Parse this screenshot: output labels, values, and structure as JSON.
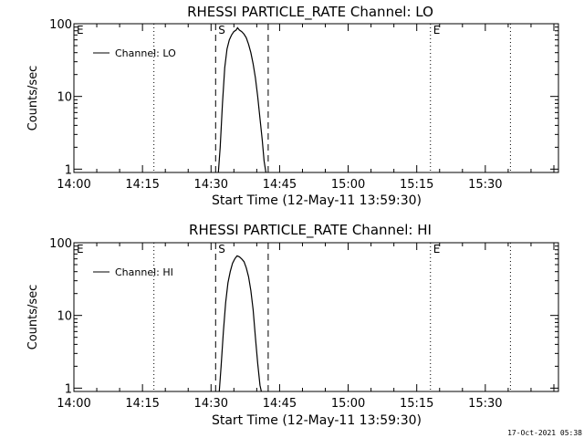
{
  "footer_timestamp": "17-Oct-2021 05:38",
  "colors": {
    "background": "#ffffff",
    "ink": "#000000"
  },
  "chart_data": [
    {
      "type": "line",
      "title": "RHESSI PARTICLE_RATE Channel: LO",
      "xlabel": "Start Time (12-May-11 13:59:30)",
      "ylabel": "Counts/sec",
      "y_scale": "log",
      "ylim": [
        0.9,
        100
      ],
      "xlim_minutes": [
        0,
        106
      ],
      "x_ticks": [
        {
          "label": "14:00",
          "value": 0
        },
        {
          "label": "14:15",
          "value": 15
        },
        {
          "label": "14:30",
          "value": 30
        },
        {
          "label": "14:45",
          "value": 45
        },
        {
          "label": "15:00",
          "value": 60
        },
        {
          "label": "15:15",
          "value": 75
        },
        {
          "label": "15:30",
          "value": 90
        }
      ],
      "y_ticks": [
        {
          "label": "1",
          "value": 1
        },
        {
          "label": "10",
          "value": 10
        },
        {
          "label": "100",
          "value": 100
        }
      ],
      "legend": {
        "label": "Channel: LO",
        "placement": "top-left"
      },
      "markers": [
        {
          "label": "E",
          "minutes": 0,
          "style": "dotted"
        },
        {
          "label": "",
          "minutes": 17.5,
          "style": "dotted"
        },
        {
          "label": "S",
          "minutes": 31,
          "style": "dashed"
        },
        {
          "label": "",
          "minutes": 42.5,
          "style": "dashed"
        },
        {
          "label": "E",
          "minutes": 78,
          "style": "dotted"
        },
        {
          "label": "",
          "minutes": 95.5,
          "style": "dotted"
        }
      ],
      "series": [
        {
          "name": "Channel: LO",
          "points": [
            [
              31.6,
              0.9
            ],
            [
              32.0,
              2.0
            ],
            [
              32.5,
              8
            ],
            [
              33.0,
              25
            ],
            [
              33.5,
              45
            ],
            [
              34.0,
              60
            ],
            [
              34.5,
              70
            ],
            [
              35.0,
              78
            ],
            [
              35.5,
              82
            ],
            [
              35.8,
              88
            ],
            [
              36.2,
              82
            ],
            [
              36.7,
              78
            ],
            [
              37.2,
              72
            ],
            [
              37.7,
              64
            ],
            [
              38.2,
              52
            ],
            [
              38.7,
              40
            ],
            [
              39.2,
              28
            ],
            [
              39.7,
              18
            ],
            [
              40.2,
              10
            ],
            [
              40.7,
              5
            ],
            [
              41.2,
              2.5
            ],
            [
              41.6,
              1.3
            ],
            [
              42.0,
              0.9
            ]
          ]
        }
      ]
    },
    {
      "type": "line",
      "title": "RHESSI PARTICLE_RATE Channel: HI",
      "xlabel": "Start Time (12-May-11 13:59:30)",
      "ylabel": "Counts/sec",
      "y_scale": "log",
      "ylim": [
        0.9,
        100
      ],
      "xlim_minutes": [
        0,
        106
      ],
      "x_ticks": [
        {
          "label": "14:00",
          "value": 0
        },
        {
          "label": "14:15",
          "value": 15
        },
        {
          "label": "14:30",
          "value": 30
        },
        {
          "label": "14:45",
          "value": 45
        },
        {
          "label": "15:00",
          "value": 60
        },
        {
          "label": "15:15",
          "value": 75
        },
        {
          "label": "15:30",
          "value": 90
        }
      ],
      "y_ticks": [
        {
          "label": "1",
          "value": 1
        },
        {
          "label": "10",
          "value": 10
        },
        {
          "label": "100",
          "value": 100
        }
      ],
      "legend": {
        "label": "Channel: HI",
        "placement": "top-left"
      },
      "markers": [
        {
          "label": "E",
          "minutes": 0,
          "style": "dotted"
        },
        {
          "label": "",
          "minutes": 17.5,
          "style": "dotted"
        },
        {
          "label": "S",
          "minutes": 31,
          "style": "dashed"
        },
        {
          "label": "",
          "minutes": 42.5,
          "style": "dashed"
        },
        {
          "label": "E",
          "minutes": 78,
          "style": "dotted"
        },
        {
          "label": "",
          "minutes": 95.5,
          "style": "dotted"
        }
      ],
      "series": [
        {
          "name": "Channel: HI",
          "points": [
            [
              31.8,
              0.9
            ],
            [
              32.2,
              2.0
            ],
            [
              32.7,
              6
            ],
            [
              33.2,
              15
            ],
            [
              33.7,
              28
            ],
            [
              34.2,
              40
            ],
            [
              34.7,
              52
            ],
            [
              35.2,
              60
            ],
            [
              35.7,
              66
            ],
            [
              36.2,
              64
            ],
            [
              36.7,
              60
            ],
            [
              37.2,
              55
            ],
            [
              37.7,
              45
            ],
            [
              38.2,
              34
            ],
            [
              38.7,
              22
            ],
            [
              39.2,
              12
            ],
            [
              39.7,
              5
            ],
            [
              40.2,
              2.2
            ],
            [
              40.7,
              1.1
            ],
            [
              41.0,
              0.9
            ]
          ]
        }
      ]
    }
  ]
}
